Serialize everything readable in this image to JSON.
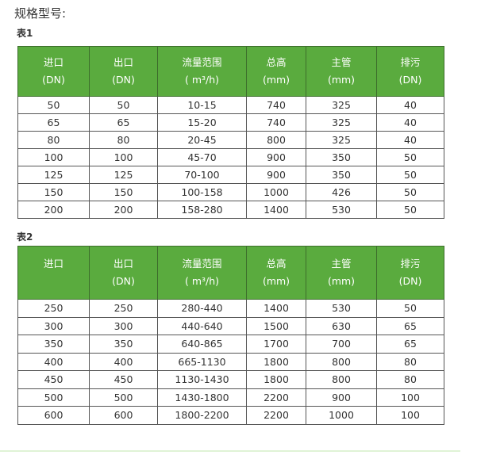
{
  "title": "规格型号:",
  "accent_color": "#5aab3e",
  "tables": [
    {
      "caption": "表1",
      "headers": [
        [
          "进口",
          "(DN)"
        ],
        [
          "出口",
          "(DN)"
        ],
        [
          "流量范围",
          "( m³/h)"
        ],
        [
          "总高",
          "(mm)"
        ],
        [
          "主管",
          "(mm)"
        ],
        [
          "排污",
          "(DN)"
        ]
      ],
      "rows": [
        [
          "50",
          "50",
          "10-15",
          "740",
          "325",
          "40"
        ],
        [
          "65",
          "65",
          "15-20",
          "740",
          "325",
          "40"
        ],
        [
          "80",
          "80",
          "20-45",
          "800",
          "325",
          "40"
        ],
        [
          "100",
          "100",
          "45-70",
          "900",
          "350",
          "50"
        ],
        [
          "125",
          "125",
          "70-100",
          "900",
          "350",
          "50"
        ],
        [
          "150",
          "150",
          "100-158",
          "1000",
          "426",
          "50"
        ],
        [
          "200",
          "200",
          "158-280",
          "1400",
          "530",
          "50"
        ]
      ]
    },
    {
      "caption": "表2",
      "headers": [
        [
          "进口",
          ""
        ],
        [
          "出口",
          "(DN)"
        ],
        [
          "流量范围",
          "( m³/h)"
        ],
        [
          "总高",
          "(mm)"
        ],
        [
          "主管",
          "(mm)"
        ],
        [
          "排污",
          "(DN)"
        ]
      ],
      "rows": [
        [
          "250",
          "250",
          "280-440",
          "1400",
          "530",
          "50"
        ],
        [
          "300",
          "300",
          "440-640",
          "1500",
          "630",
          "65"
        ],
        [
          "350",
          "350",
          "640-865",
          "1700",
          "700",
          "65"
        ],
        [
          "400",
          "400",
          "665-1130",
          "1800",
          "800",
          "80"
        ],
        [
          "450",
          "450",
          "1130-1430",
          "1800",
          "800",
          "80"
        ],
        [
          "500",
          "500",
          "1430-1800",
          "2200",
          "900",
          "100"
        ],
        [
          "600",
          "600",
          "1800-2200",
          "2200",
          "1000",
          "100"
        ]
      ]
    }
  ]
}
